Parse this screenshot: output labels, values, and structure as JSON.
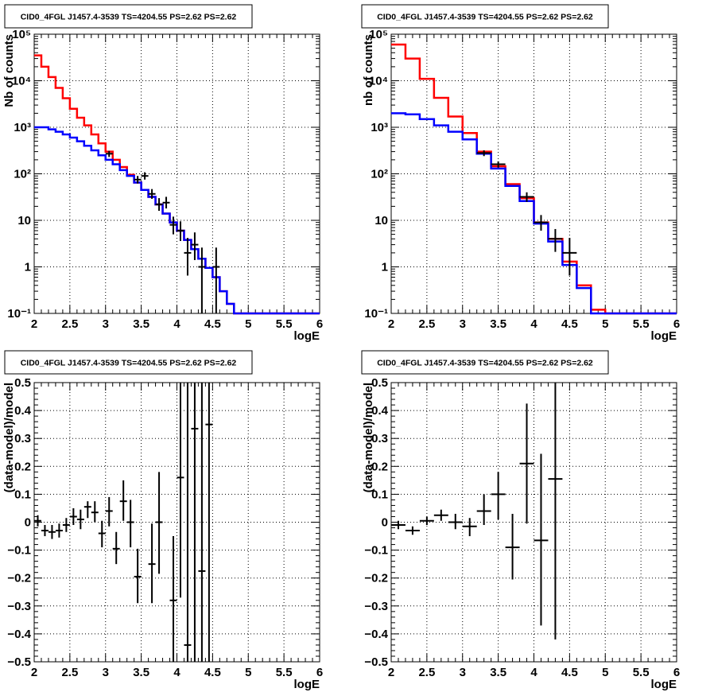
{
  "colors": {
    "model_total": "#ff0000",
    "model_source": "#0000ff",
    "data": "#000000",
    "grid": "#000000"
  },
  "chart_data": [
    {
      "type": "line",
      "title": "CID0_4FGL J1457.4-3539 TS=4204.55 PS=2.62 PS=2.62",
      "xlabel": "logE",
      "ylabel": "Nb of counts",
      "xscale": "linear",
      "yscale": "log",
      "xlim": [
        2,
        6
      ],
      "ylim": [
        0.1,
        100000
      ],
      "grid": true,
      "x_ticks": [
        {
          "v": 2,
          "label": "2"
        },
        {
          "v": 2.5,
          "label": "2.5"
        },
        {
          "v": 3,
          "label": "3"
        },
        {
          "v": 3.5,
          "label": "3.5"
        },
        {
          "v": 4,
          "label": "4"
        },
        {
          "v": 4.5,
          "label": "4.5"
        },
        {
          "v": 5,
          "label": "5"
        },
        {
          "v": 5.5,
          "label": "5.5"
        },
        {
          "v": 6,
          "label": "6"
        }
      ],
      "y_ticks": [
        {
          "v": 0.1,
          "label": "10⁻¹"
        },
        {
          "v": 1,
          "label": "1"
        },
        {
          "v": 10,
          "label": "10"
        },
        {
          "v": 100,
          "label": "10²"
        },
        {
          "v": 1000,
          "label": "10³"
        },
        {
          "v": 10000,
          "label": "10⁴"
        },
        {
          "v": 100000,
          "label": "10⁵"
        }
      ],
      "bin_edges": [
        2,
        2.1,
        2.2,
        2.3,
        2.4,
        2.5,
        2.6,
        2.7,
        2.8,
        2.9,
        3,
        3.1,
        3.2,
        3.3,
        3.4,
        3.5,
        3.6,
        3.7,
        3.8,
        3.9,
        4,
        4.1,
        4.2,
        4.3,
        4.4,
        4.5,
        4.6,
        4.7,
        4.8,
        4.9,
        5,
        5.1,
        5.2,
        5.3,
        5.4,
        5.5,
        5.6,
        5.7,
        5.8,
        5.9,
        6
      ],
      "series": [
        {
          "color_key": "model_total",
          "values": [
            35000,
            20000,
            12000,
            7000,
            4200,
            2500,
            1600,
            1100,
            700,
            450,
            300,
            200,
            140,
            95,
            65,
            45,
            32,
            22,
            14,
            9,
            6,
            3.8,
            2.4,
            1.5,
            0.95,
            0.6,
            0.3,
            0.16,
            0.1,
            0.1,
            0.1,
            0.1,
            0.1,
            0.1,
            0.1,
            0.1,
            0.1,
            0.1,
            0.1,
            0.1
          ]
        },
        {
          "color_key": "model_source",
          "values": [
            1000,
            1000,
            900,
            800,
            700,
            600,
            500,
            400,
            320,
            250,
            200,
            160,
            120,
            90,
            65,
            45,
            32,
            22,
            14,
            9,
            6,
            3.8,
            2.4,
            1.5,
            0.95,
            0.6,
            0.3,
            0.16,
            0.1,
            0.1,
            0.1,
            0.1,
            0.1,
            0.1,
            0.1,
            0.1,
            0.1,
            0.1,
            0.1,
            0.1
          ]
        }
      ],
      "points": [
        {
          "x": 3.05,
          "y": 270,
          "ylo": 230,
          "yhi": 310,
          "xerr": 0.05
        },
        {
          "x": 3.45,
          "y": 75,
          "ylo": 62,
          "yhi": 90,
          "xerr": 0.05
        },
        {
          "x": 3.55,
          "y": 90,
          "ylo": 75,
          "yhi": 108,
          "xerr": 0.05
        },
        {
          "x": 3.65,
          "y": 37,
          "ylo": 29,
          "yhi": 47,
          "xerr": 0.05
        },
        {
          "x": 3.75,
          "y": 22,
          "ylo": 16,
          "yhi": 30,
          "xerr": 0.05
        },
        {
          "x": 3.85,
          "y": 24,
          "ylo": 18,
          "yhi": 32,
          "xerr": 0.05
        },
        {
          "x": 3.95,
          "y": 8,
          "ylo": 5,
          "yhi": 12,
          "xerr": 0.05
        },
        {
          "x": 4.05,
          "y": 6,
          "ylo": 3.6,
          "yhi": 9.5,
          "xerr": 0.05
        },
        {
          "x": 4.15,
          "y": 2,
          "ylo": 0.65,
          "yhi": 4.2,
          "xerr": 0.05
        },
        {
          "x": 4.25,
          "y": 3,
          "ylo": 1.4,
          "yhi": 5.5,
          "xerr": 0.05
        },
        {
          "x": 4.35,
          "y": 1,
          "ylo": 0.1,
          "yhi": 2.6,
          "xerr": 0.05
        },
        {
          "x": 4.55,
          "y": 1,
          "ylo": 0.1,
          "yhi": 2.6,
          "xerr": 0.05
        }
      ]
    },
    {
      "type": "line",
      "title": "CID0_4FGL J1457.4-3539 TS=4204.55 PS=2.62 PS=2.62",
      "xlabel": "logE",
      "ylabel": "nb of counts",
      "xscale": "linear",
      "yscale": "log",
      "xlim": [
        2,
        6
      ],
      "ylim": [
        0.1,
        100000
      ],
      "grid": true,
      "x_ticks": [
        {
          "v": 2,
          "label": "2"
        },
        {
          "v": 2.5,
          "label": "2.5"
        },
        {
          "v": 3,
          "label": "3"
        },
        {
          "v": 3.5,
          "label": "3.5"
        },
        {
          "v": 4,
          "label": "4"
        },
        {
          "v": 4.5,
          "label": "4.5"
        },
        {
          "v": 5,
          "label": "5"
        },
        {
          "v": 5.5,
          "label": "5.5"
        },
        {
          "v": 6,
          "label": "6"
        }
      ],
      "y_ticks": [
        {
          "v": 0.1,
          "label": "10⁻¹"
        },
        {
          "v": 1,
          "label": "1"
        },
        {
          "v": 10,
          "label": "10"
        },
        {
          "v": 100,
          "label": "10²"
        },
        {
          "v": 1000,
          "label": "10³"
        },
        {
          "v": 10000,
          "label": "10⁴"
        },
        {
          "v": 100000,
          "label": "10⁵"
        }
      ],
      "bin_edges": [
        2,
        2.2,
        2.4,
        2.6,
        2.8,
        3,
        3.2,
        3.4,
        3.6,
        3.8,
        4,
        4.2,
        4.4,
        4.6,
        4.8,
        5,
        5.2,
        5.4,
        5.6,
        5.8,
        6
      ],
      "series": [
        {
          "color_key": "model_total",
          "values": [
            60000,
            30000,
            11000,
            4300,
            1700,
            750,
            300,
            145,
            60,
            30,
            9,
            4,
            1.3,
            0.4,
            0.12,
            0.1,
            0.1,
            0.1,
            0.1,
            0.1
          ]
        },
        {
          "color_key": "model_source",
          "values": [
            2000,
            1900,
            1500,
            1100,
            800,
            550,
            270,
            130,
            55,
            26,
            8.5,
            3.5,
            1.1,
            0.35,
            0.1,
            0.1,
            0.1,
            0.1,
            0.1,
            0.1
          ]
        }
      ],
      "points": [
        {
          "x": 3.3,
          "y": 280,
          "ylo": 240,
          "yhi": 320,
          "xerr": 0.1
        },
        {
          "x": 3.5,
          "y": 160,
          "ylo": 135,
          "yhi": 185,
          "xerr": 0.1
        },
        {
          "x": 3.9,
          "y": 32,
          "ylo": 25,
          "yhi": 40,
          "xerr": 0.1
        },
        {
          "x": 4.1,
          "y": 9,
          "ylo": 6,
          "yhi": 13,
          "xerr": 0.1
        },
        {
          "x": 4.3,
          "y": 4,
          "ylo": 2.1,
          "yhi": 6.5,
          "xerr": 0.1
        },
        {
          "x": 4.5,
          "y": 2,
          "ylo": 0.65,
          "yhi": 4.2,
          "xerr": 0.1
        }
      ]
    },
    {
      "type": "scatter",
      "title": "CID0_4FGL J1457.4-3539 TS=4204.55 PS=2.62 PS=2.62",
      "xlabel": "logE",
      "ylabel": "(data-model)/model",
      "xscale": "linear",
      "yscale": "linear",
      "xlim": [
        2,
        6
      ],
      "ylim": [
        -0.5,
        0.5
      ],
      "grid": true,
      "x_ticks": [
        {
          "v": 2,
          "label": "2"
        },
        {
          "v": 2.5,
          "label": "2.5"
        },
        {
          "v": 3,
          "label": "3"
        },
        {
          "v": 3.5,
          "label": "3.5"
        },
        {
          "v": 4,
          "label": "4"
        },
        {
          "v": 4.5,
          "label": "4.5"
        },
        {
          "v": 5,
          "label": "5"
        },
        {
          "v": 5.5,
          "label": "5.5"
        },
        {
          "v": 6,
          "label": "6"
        }
      ],
      "y_ticks": [
        {
          "v": -0.5,
          "label": "−0.5"
        },
        {
          "v": -0.4,
          "label": "−0.4"
        },
        {
          "v": -0.3,
          "label": "−0.3"
        },
        {
          "v": -0.2,
          "label": "−0.2"
        },
        {
          "v": -0.1,
          "label": "−0.1"
        },
        {
          "v": 0,
          "label": "0"
        },
        {
          "v": 0.1,
          "label": "0.1"
        },
        {
          "v": 0.2,
          "label": "0.2"
        },
        {
          "v": 0.3,
          "label": "0.3"
        },
        {
          "v": 0.4,
          "label": "0.4"
        },
        {
          "v": 0.5,
          "label": "0.5"
        }
      ],
      "series": [],
      "points": [
        {
          "x": 2.05,
          "y": 0.005,
          "ylo": -0.015,
          "yhi": 0.025,
          "xerr": 0.05
        },
        {
          "x": 2.15,
          "y": -0.03,
          "ylo": -0.05,
          "yhi": -0.01,
          "xerr": 0.05
        },
        {
          "x": 2.25,
          "y": -0.035,
          "ylo": -0.06,
          "yhi": -0.01,
          "xerr": 0.05
        },
        {
          "x": 2.35,
          "y": -0.03,
          "ylo": -0.055,
          "yhi": -0.005,
          "xerr": 0.05
        },
        {
          "x": 2.45,
          "y": -0.01,
          "ylo": -0.035,
          "yhi": 0.015,
          "xerr": 0.05
        },
        {
          "x": 2.55,
          "y": 0.02,
          "ylo": -0.01,
          "yhi": 0.05,
          "xerr": 0.05
        },
        {
          "x": 2.65,
          "y": 0.01,
          "ylo": -0.025,
          "yhi": 0.045,
          "xerr": 0.05
        },
        {
          "x": 2.75,
          "y": 0.055,
          "ylo": 0.015,
          "yhi": 0.075,
          "xerr": 0.05
        },
        {
          "x": 2.85,
          "y": 0.035,
          "ylo": 0.0,
          "yhi": 0.075,
          "xerr": 0.05
        },
        {
          "x": 2.95,
          "y": -0.04,
          "ylo": -0.09,
          "yhi": 0.005,
          "xerr": 0.05
        },
        {
          "x": 3.05,
          "y": 0.04,
          "ylo": -0.015,
          "yhi": 0.09,
          "xerr": 0.05
        },
        {
          "x": 3.15,
          "y": -0.095,
          "ylo": -0.15,
          "yhi": -0.035,
          "xerr": 0.05
        },
        {
          "x": 3.25,
          "y": 0.075,
          "ylo": 0.005,
          "yhi": 0.15,
          "xerr": 0.05
        },
        {
          "x": 3.35,
          "y": 0.0,
          "ylo": -0.09,
          "yhi": 0.08,
          "xerr": 0.05
        },
        {
          "x": 3.45,
          "y": -0.195,
          "ylo": -0.29,
          "yhi": -0.095,
          "xerr": 0.05
        },
        {
          "x": 3.65,
          "y": -0.15,
          "ylo": -0.29,
          "yhi": -0.005,
          "xerr": 0.05
        },
        {
          "x": 3.75,
          "y": 0.0,
          "ylo": -0.185,
          "yhi": 0.18,
          "xerr": 0.05
        },
        {
          "x": 3.95,
          "y": -0.28,
          "ylo": -0.5,
          "yhi": -0.05,
          "xerr": 0.05
        },
        {
          "x": 4.05,
          "y": 0.16,
          "ylo": -0.27,
          "yhi": 0.5,
          "xerr": 0.05
        },
        {
          "x": 4.15,
          "y": -0.44,
          "ylo": -0.5,
          "yhi": 0.5,
          "xerr": 0.05
        },
        {
          "x": 4.25,
          "y": 0.335,
          "ylo": -0.5,
          "yhi": 0.5,
          "xerr": 0.05
        },
        {
          "x": 4.35,
          "y": -0.175,
          "ylo": -0.5,
          "yhi": 0.5,
          "xerr": 0.05
        },
        {
          "x": 4.45,
          "y": 0.35,
          "ylo": -0.5,
          "yhi": 0.5,
          "xerr": 0.05
        }
      ]
    },
    {
      "type": "scatter",
      "title": "CID0_4FGL J1457.4-3539 TS=4204.55 PS=2.62 PS=2.62",
      "xlabel": "logE",
      "ylabel": "(data-model)/model",
      "xscale": "linear",
      "yscale": "linear",
      "xlim": [
        2,
        6
      ],
      "ylim": [
        -0.5,
        0.5
      ],
      "grid": true,
      "x_ticks": [
        {
          "v": 2,
          "label": "2"
        },
        {
          "v": 2.5,
          "label": "2.5"
        },
        {
          "v": 3,
          "label": "3"
        },
        {
          "v": 3.5,
          "label": "3.5"
        },
        {
          "v": 4,
          "label": "4"
        },
        {
          "v": 4.5,
          "label": "4.5"
        },
        {
          "v": 5,
          "label": "5"
        },
        {
          "v": 5.5,
          "label": "5.5"
        },
        {
          "v": 6,
          "label": "6"
        }
      ],
      "y_ticks": [
        {
          "v": -0.5,
          "label": "−0.5"
        },
        {
          "v": -0.4,
          "label": "−0.4"
        },
        {
          "v": -0.3,
          "label": "−0.3"
        },
        {
          "v": -0.2,
          "label": "−0.2"
        },
        {
          "v": -0.1,
          "label": "−0.1"
        },
        {
          "v": 0,
          "label": "0"
        },
        {
          "v": 0.1,
          "label": "0.1"
        },
        {
          "v": 0.2,
          "label": "0.2"
        },
        {
          "v": 0.3,
          "label": "0.3"
        },
        {
          "v": 0.4,
          "label": "0.4"
        },
        {
          "v": 0.5,
          "label": "0.5"
        }
      ],
      "series": [],
      "points": [
        {
          "x": 2.1,
          "y": -0.01,
          "ylo": -0.025,
          "yhi": 0.005,
          "xerr": 0.1
        },
        {
          "x": 2.3,
          "y": -0.03,
          "ylo": -0.045,
          "yhi": -0.015,
          "xerr": 0.1
        },
        {
          "x": 2.5,
          "y": 0.005,
          "ylo": -0.01,
          "yhi": 0.02,
          "xerr": 0.1
        },
        {
          "x": 2.7,
          "y": 0.025,
          "ylo": 0.005,
          "yhi": 0.045,
          "xerr": 0.1
        },
        {
          "x": 2.9,
          "y": 0.0,
          "ylo": -0.025,
          "yhi": 0.03,
          "xerr": 0.1
        },
        {
          "x": 3.1,
          "y": -0.015,
          "ylo": -0.05,
          "yhi": 0.015,
          "xerr": 0.1
        },
        {
          "x": 3.3,
          "y": 0.04,
          "ylo": -0.01,
          "yhi": 0.1,
          "xerr": 0.1
        },
        {
          "x": 3.5,
          "y": 0.1,
          "ylo": 0.01,
          "yhi": 0.18,
          "xerr": 0.1
        },
        {
          "x": 3.7,
          "y": -0.09,
          "ylo": -0.205,
          "yhi": 0.03,
          "xerr": 0.1
        },
        {
          "x": 3.9,
          "y": 0.21,
          "ylo": -0.005,
          "yhi": 0.425,
          "xerr": 0.1
        },
        {
          "x": 4.1,
          "y": -0.065,
          "ylo": -0.37,
          "yhi": 0.245,
          "xerr": 0.1
        },
        {
          "x": 4.3,
          "y": 0.155,
          "ylo": -0.42,
          "yhi": 0.5,
          "xerr": 0.1
        }
      ]
    }
  ]
}
